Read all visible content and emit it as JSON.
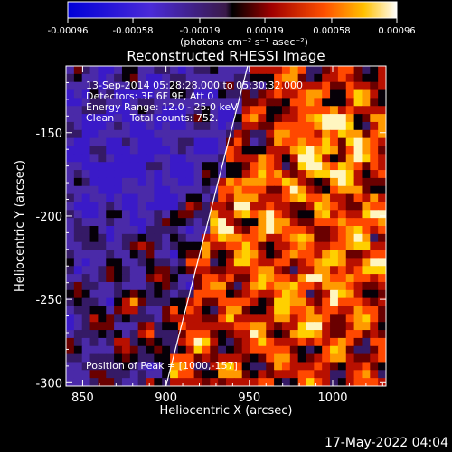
{
  "chart_data": {
    "type": "heatmap",
    "title": "Reconstructed RHESSI Image",
    "xlabel": "Heliocentric X (arcsec)",
    "ylabel": "Heliocentric Y (arcsec)",
    "xlim": [
      840,
      1032
    ],
    "ylim": [
      -302,
      -110
    ],
    "x_ticks": [
      "850",
      "900",
      "950",
      "1000"
    ],
    "y_ticks": [
      "-150",
      "-200",
      "-250",
      "-300"
    ],
    "colorbar": {
      "min": -0.00096,
      "max": 0.00096,
      "ticks": [
        "-0.00096",
        "-0.00058",
        "-0.00019",
        "0.00019",
        "0.00058",
        "0.00096"
      ],
      "unit_label": "(photons cm⁻² s⁻¹ asec⁻²)"
    },
    "annotations": [
      "13-Sep-2014 05:28:28.000 to 05:30:32.000",
      "Detectors: 3F 6F 9F, Att 0",
      "Energy Range: 12.0 - 25.0 keV",
      "Clean     Total counts: 752."
    ],
    "peak_label": "Position of Peak = [1000,-157]",
    "limb_line": {
      "x": [
        900,
        949
      ],
      "y": [
        -302,
        -110
      ]
    },
    "grid": false,
    "colors": {
      "limb": "#ffffff",
      "background": "#000000"
    }
  },
  "footer": {
    "date": "17-May-2022 04:04"
  }
}
